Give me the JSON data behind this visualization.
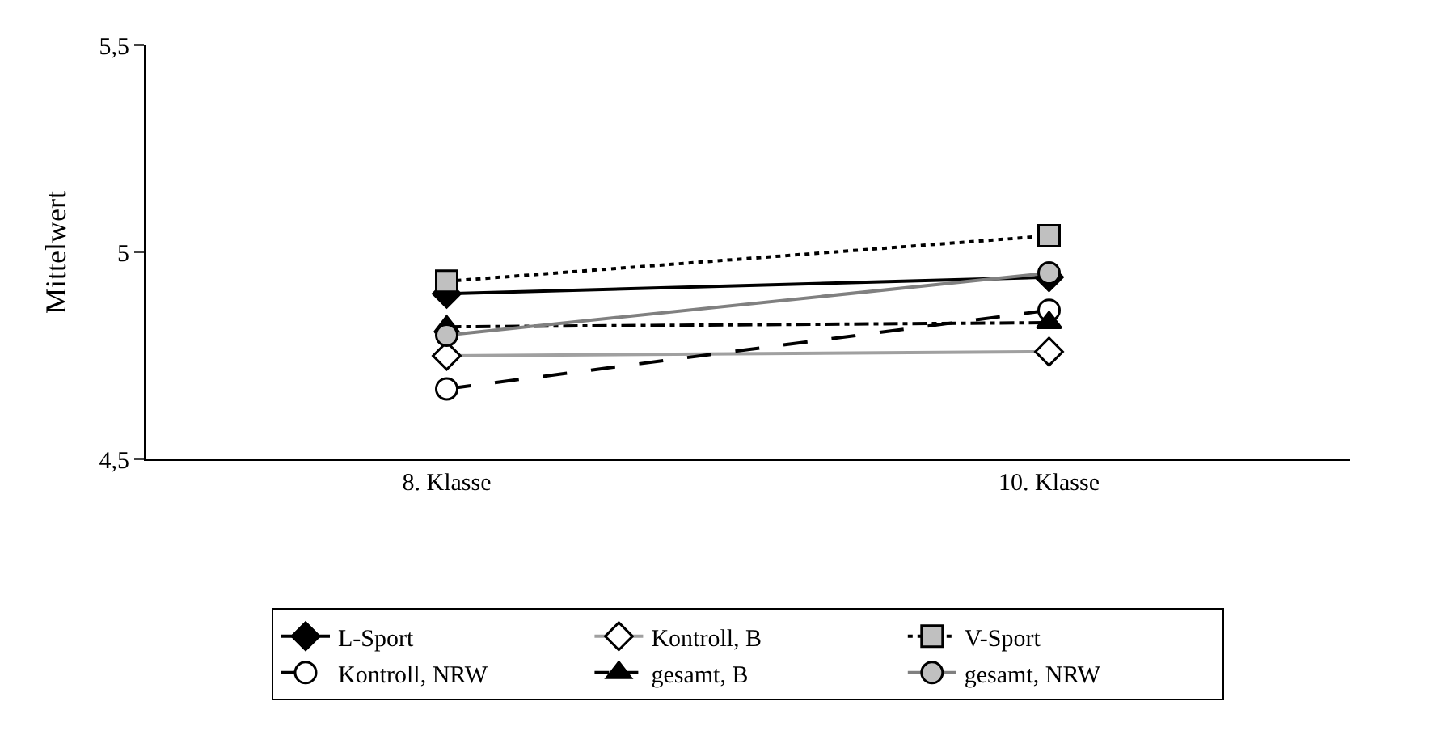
{
  "chart_data": {
    "type": "line",
    "ylabel": "Mittelwert",
    "categories": [
      "8. Klasse",
      "10. Klasse"
    ],
    "ylim": [
      4.5,
      5.5
    ],
    "yticks": [
      {
        "value": 4.5,
        "label": "4,5"
      },
      {
        "value": 5,
        "label": "5"
      },
      {
        "value": 5.5,
        "label": "5,5"
      }
    ],
    "legend": "bottom",
    "series": [
      {
        "name": "L-Sport",
        "color": "#000000",
        "values": [
          4.9,
          4.94
        ],
        "marker": "diamond",
        "line_style": "solid"
      },
      {
        "name": "Kontroll, B",
        "color": "#a0a0a0",
        "values": [
          4.75,
          4.76
        ],
        "marker": "diamond",
        "line_style": "solid"
      },
      {
        "name": "V-Sport",
        "color": "#000000",
        "values": [
          4.93,
          5.04
        ],
        "marker": "square",
        "line_style": "dotted"
      },
      {
        "name": "Kontroll, NRW",
        "color": "#000000",
        "values": [
          4.67,
          4.86
        ],
        "marker": "circle",
        "line_style": "dashed"
      },
      {
        "name": "gesamt, B",
        "color": "#000000",
        "values": [
          4.82,
          4.83
        ],
        "marker": "triangle",
        "line_style": "dashdot"
      },
      {
        "name": "gesamt, NRW",
        "color": "#808080",
        "values": [
          4.8,
          4.95
        ],
        "marker": "circle",
        "line_style": "solid"
      }
    ]
  }
}
